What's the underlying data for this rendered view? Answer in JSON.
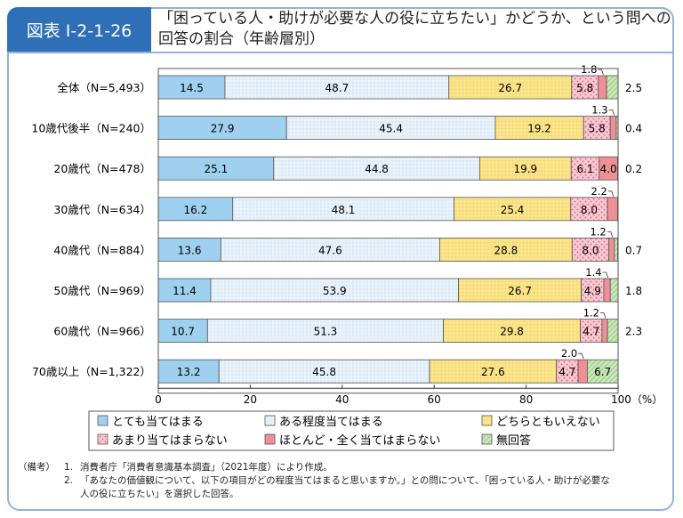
{
  "header": {
    "figure_id": "図表 I-2-1-26",
    "title": "「困っている人・助けが必要な人の役に立ちたい」かどうか、という問への回答の割合（年齢層別）"
  },
  "colors": {
    "title_bg": "#2f6fb7",
    "border": "#8fb3de"
  },
  "chart_data": {
    "type": "bar",
    "orientation": "horizontal-stacked-100%",
    "categories": [
      "全体（N=5,493）",
      "10歳代後半（N=240）",
      "20歳代（N=478）",
      "30歳代（N=634）",
      "40歳代（N=884）",
      "50歳代（N=969）",
      "60歳代（N=966）",
      "70歳以上（N=1,322）"
    ],
    "series": [
      {
        "name": "とても当てはまる",
        "color": "#9fd0ef",
        "values": [
          14.5,
          27.9,
          25.1,
          16.2,
          13.6,
          11.4,
          10.7,
          13.2
        ]
      },
      {
        "name": "ある程度当てはまる",
        "color": "#e8f2fa",
        "values": [
          48.7,
          45.4,
          44.8,
          48.1,
          47.6,
          53.9,
          51.3,
          45.8
        ]
      },
      {
        "name": "どちらともいえない",
        "color": "#fbe68f",
        "values": [
          26.7,
          19.2,
          19.9,
          25.4,
          28.8,
          26.7,
          29.8,
          27.6
        ]
      },
      {
        "name": "あまり当てはまらない",
        "color": "#f8c8d0",
        "values": [
          5.8,
          5.8,
          6.1,
          8.0,
          8.0,
          4.9,
          4.7,
          4.7
        ]
      },
      {
        "name": "ほとんど・全く当てはまらない",
        "color": "#ef9096",
        "values": [
          1.8,
          1.3,
          4.0,
          2.2,
          1.2,
          1.4,
          1.2,
          2.0
        ]
      },
      {
        "name": "無回答",
        "color": "#b9dca6",
        "values": [
          2.5,
          0.4,
          0.2,
          null,
          0.7,
          1.8,
          2.3,
          6.7
        ]
      }
    ],
    "xlim": [
      0,
      100
    ],
    "xticks": [
      "0",
      "20",
      "40",
      "60",
      "80",
      "100（%）"
    ],
    "grid": false,
    "legend_position": "bottom"
  },
  "notes": {
    "label": "（備考）",
    "items": [
      {
        "num": "1.",
        "text": "消費者庁「消費者意識基本調査」（2021年度）により作成。"
      },
      {
        "num": "2.",
        "text": "「あなたの価値観について、以下の項目がどの程度当てはまると思いますか。」との問について、「困っている人・助けが必要な人の役に立ちたい」を選択した回答。"
      }
    ]
  }
}
